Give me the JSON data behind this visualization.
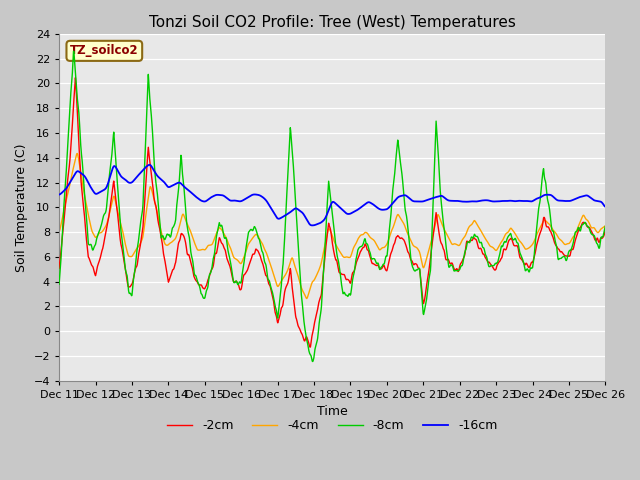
{
  "title": "Tonzi Soil CO2 Profile: Tree (West) Temperatures",
  "xlabel": "Time",
  "ylabel": "Soil Temperature (C)",
  "ylim": [
    -4,
    24
  ],
  "yticks": [
    -4,
    -2,
    0,
    2,
    4,
    6,
    8,
    10,
    12,
    14,
    16,
    18,
    20,
    22,
    24
  ],
  "x_start": 1,
  "x_end": 16,
  "xtick_labels": [
    "Dec 11",
    "Dec 12",
    "Dec 13",
    "Dec 14",
    "Dec 15",
    "Dec 16",
    "Dec 17",
    "Dec 18",
    "Dec 19",
    "Dec 20",
    "Dec 21",
    "Dec 22",
    "Dec 23",
    "Dec 24",
    "Dec 25",
    "Dec 26"
  ],
  "xtick_positions": [
    1,
    2,
    3,
    4,
    5,
    6,
    7,
    8,
    9,
    10,
    11,
    12,
    13,
    14,
    15,
    16
  ],
  "series": {
    "2cm": {
      "color": "#ff0000",
      "label": "-2cm",
      "lw": 1.0
    },
    "4cm": {
      "color": "#ffa500",
      "label": "-4cm",
      "lw": 1.0
    },
    "8cm": {
      "color": "#00cc00",
      "label": "-8cm",
      "lw": 1.0
    },
    "16cm": {
      "color": "#0000ff",
      "label": "-16cm",
      "lw": 1.3
    }
  },
  "annotation_text": "TZ_soilco2",
  "annotation_color": "#8b0000",
  "annotation_bg": "#ffffcc",
  "annotation_border": "#8b6914",
  "bg_color": "#e8e8e8",
  "plot_bg": "#e8e8e8",
  "title_fontsize": 11,
  "label_fontsize": 9,
  "tick_fontsize": 8
}
